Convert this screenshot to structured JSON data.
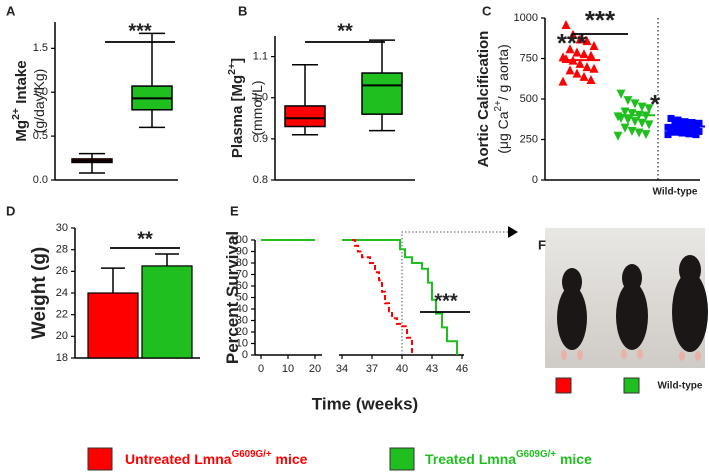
{
  "chart_data": [
    {
      "type": "box",
      "panel": "A",
      "ylabel": [
        [
          "Mg",
          "2+",
          " Intake"
        ],
        [
          "(g/day/Kg)"
        ]
      ],
      "ylim": [
        0,
        1.8
      ],
      "yticks": [
        {
          "value": 0,
          "label": "0.0"
        },
        0.5,
        {
          "value": 1,
          "label": "1.0"
        },
        1.5
      ],
      "boxes": [
        {
          "color": "#ff0000",
          "min": 0.08,
          "q1": 0.2,
          "median": 0.22,
          "q3": 0.24,
          "max": 0.3
        },
        {
          "color": "#1fbf1f",
          "min": 0.6,
          "q1": 0.8,
          "median": 0.93,
          "q3": 1.07,
          "max": 1.67
        }
      ],
      "annotations": [
        "***"
      ]
    },
    {
      "type": "box",
      "panel": "B",
      "ylabel": [
        [
          "Plasma [Mg",
          "2+",
          "]"
        ],
        [
          "(mmol/L)"
        ]
      ],
      "ylim": [
        0.8,
        1.15
      ],
      "yticks": [
        0.8,
        0.9,
        {
          "value": 1,
          "label": "1.0"
        },
        1.1
      ],
      "boxes": [
        {
          "color": "#ff0000",
          "min": 0.91,
          "q1": 0.93,
          "median": 0.95,
          "q3": 0.98,
          "max": 1.08
        },
        {
          "color": "#1fbf1f",
          "min": 0.92,
          "q1": 0.96,
          "median": 1.03,
          "q3": 1.06,
          "max": 1.14
        }
      ],
      "annotations": [
        "**"
      ]
    },
    {
      "type": "dot",
      "panel": "C",
      "ylabel": [
        [
          "Aortic Calcification"
        ],
        [
          "(μg Ca",
          "2+",
          "/ g aorta)"
        ]
      ],
      "ylim": [
        0,
        1000
      ],
      "yticks": [
        0,
        250,
        500,
        750,
        1000
      ],
      "categories": [
        null,
        null,
        "Wild-type"
      ],
      "groups": [
        {
          "color": "#ff0000",
          "marker": "triangle",
          "mean": 740,
          "values": [
            960,
            900,
            870,
            860,
            830,
            810,
            790,
            780,
            770,
            760,
            750,
            740,
            720,
            700,
            690,
            680,
            660,
            640,
            620,
            610
          ]
        },
        {
          "color": "#1fbf1f",
          "marker": "triangle-down",
          "mean": 400,
          "values": [
            530,
            490,
            470,
            450,
            440,
            420,
            410,
            400,
            395,
            390,
            380,
            370,
            360,
            350,
            340,
            320,
            300,
            290,
            280,
            270
          ]
        },
        {
          "color": "#0000ff",
          "marker": "square",
          "mean": 330,
          "values": [
            380,
            370,
            360,
            355,
            350,
            345,
            340,
            335,
            330,
            325,
            320,
            315,
            310,
            305,
            300,
            295,
            290,
            285,
            280,
            280
          ]
        }
      ],
      "annotations": [
        "***",
        "*",
        "***"
      ]
    },
    {
      "type": "bar",
      "panel": "D",
      "ylabel": [
        [
          "Weight (g)"
        ]
      ],
      "ylim": [
        18,
        30
      ],
      "yticks": [
        18,
        20,
        22,
        24,
        26,
        28,
        30
      ],
      "values": [
        24,
        26.5
      ],
      "errors": [
        2.3,
        1.1
      ],
      "colors": [
        "#ff0000",
        "#1fbf1f"
      ],
      "annotations": [
        "**"
      ]
    },
    {
      "type": "line",
      "panel": "E",
      "ylabel": [
        [
          "Percent Survival"
        ]
      ],
      "xlabel": "Time (weeks)",
      "xlim": [
        0,
        46
      ],
      "xbreak": [
        20,
        34
      ],
      "xticks": [
        0,
        10,
        20,
        34,
        37,
        40,
        43,
        46
      ],
      "ylim": [
        0,
        100
      ],
      "yticks": [
        0,
        10,
        20,
        30,
        40,
        50,
        60,
        70,
        80,
        90,
        100
      ],
      "series": [
        {
          "color": "#1fbf1f",
          "dashed": false,
          "x": [
            0,
            20,
            34,
            39.8,
            39.8,
            40.3,
            40.3,
            41,
            41,
            42,
            42,
            42.6,
            42.6,
            43,
            43,
            43.4,
            43.4,
            44,
            44,
            44.5,
            44.5,
            45.5,
            45.5
          ],
          "values": [
            100,
            100,
            100,
            100,
            92,
            92,
            85,
            85,
            80,
            80,
            75,
            75,
            63,
            63,
            48,
            48,
            36,
            36,
            24,
            24,
            12,
            12,
            0
          ]
        },
        {
          "color": "#ff0000",
          "dashed": true,
          "x": [
            35,
            35.3,
            35.3,
            35.6,
            35.6,
            36,
            36,
            36.8,
            36.8,
            37.3,
            37.3,
            37.7,
            37.7,
            38,
            38,
            38.3,
            38.3,
            38.7,
            38.7,
            39,
            39,
            39.5,
            39.5,
            40,
            40,
            40.5,
            40.5,
            41,
            41
          ],
          "values": [
            100,
            100,
            95,
            95,
            90,
            90,
            85,
            85,
            80,
            80,
            72,
            72,
            65,
            65,
            55,
            55,
            45,
            45,
            38,
            38,
            32,
            32,
            27,
            27,
            25,
            25,
            15,
            15,
            0
          ]
        }
      ],
      "annotations": [
        "***"
      ]
    }
  ],
  "photo": {
    "panel": "F",
    "label": "Wild-type"
  },
  "legend": {
    "items": [
      {
        "color": "#ff0000",
        "text": [
          "Untreated Lmna",
          "G609G/+",
          " mice"
        ]
      },
      {
        "color": "#1fbf1f",
        "text": [
          "Treated Lmna",
          "G609G/+",
          " mice"
        ]
      }
    ]
  }
}
